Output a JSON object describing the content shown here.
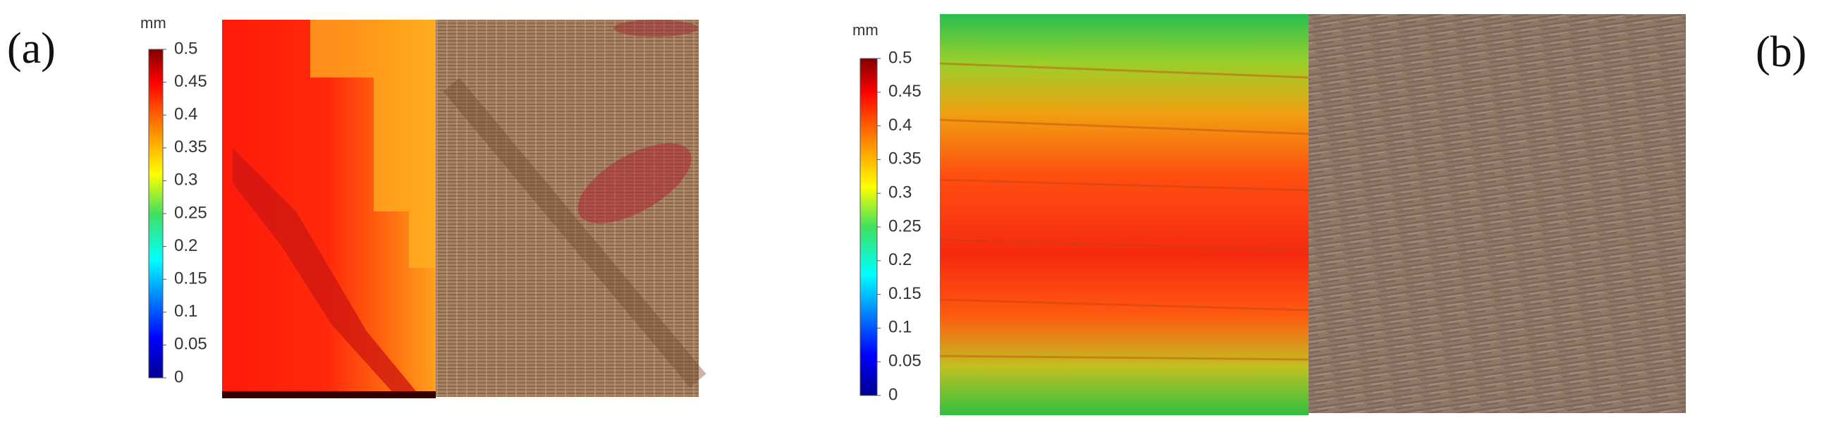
{
  "panels": [
    {
      "label": "(a)",
      "colorbar": {
        "unit": "mm",
        "lim": [
          0,
          0.5
        ],
        "ticks": [
          0,
          0.05,
          0.1,
          0.15,
          0.2,
          0.25,
          0.3,
          0.35,
          0.4,
          0.45,
          0.5
        ]
      }
    },
    {
      "label": "(b)",
      "colorbar": {
        "unit": "mm",
        "lim": [
          0,
          0.5
        ],
        "ticks": [
          0,
          0.05,
          0.1,
          0.15,
          0.2,
          0.25,
          0.3,
          0.35,
          0.4,
          0.45,
          0.5
        ]
      }
    }
  ]
}
